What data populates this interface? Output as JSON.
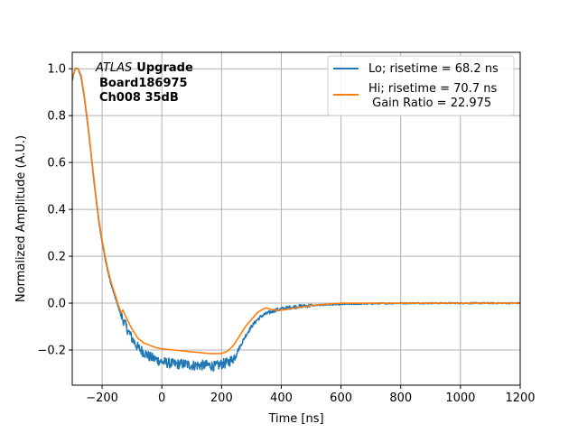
{
  "chart_data": {
    "type": "line",
    "xlabel": "Time [ns]",
    "ylabel": "Normalized Amplitude (A.U.)",
    "xlim": [
      -300,
      1200
    ],
    "ylim": [
      -0.35,
      1.07
    ],
    "xticks": [
      -200,
      0,
      200,
      400,
      600,
      800,
      1000,
      1200
    ],
    "xtick_labels": [
      "−200",
      "0",
      "200",
      "400",
      "600",
      "800",
      "1000",
      "1200"
    ],
    "yticks": [
      -0.2,
      0.0,
      0.2,
      0.4,
      0.6,
      0.8,
      1.0
    ],
    "ytick_labels": [
      "−0.2",
      "0.0",
      "0.2",
      "0.4",
      "0.6",
      "0.8",
      "1.0"
    ],
    "grid": true,
    "legend_position": "top-right",
    "annotation": {
      "italic": "ATLAS",
      "bold": "Upgrade",
      "line2": "Board186975",
      "line3": "Ch008 35dB"
    },
    "series": [
      {
        "name": "Lo; risetime = 68.2 ns",
        "color": "#1f77b4",
        "noisy": true,
        "x": [
          -300,
          -290,
          -280,
          -270,
          -260,
          -250,
          -240,
          -230,
          -220,
          -210,
          -200,
          -190,
          -180,
          -170,
          -160,
          -150,
          -140,
          -130,
          -120,
          -100,
          -80,
          -60,
          -40,
          -20,
          0,
          20,
          40,
          60,
          80,
          100,
          120,
          140,
          160,
          180,
          200,
          220,
          240,
          260,
          280,
          300,
          320,
          340,
          360,
          380,
          400,
          420,
          450,
          500,
          550,
          600,
          700,
          800,
          900,
          1000,
          1100,
          1200
        ],
        "y": [
          0.95,
          1.0,
          1.0,
          0.96,
          0.88,
          0.78,
          0.67,
          0.55,
          0.44,
          0.34,
          0.26,
          0.19,
          0.13,
          0.08,
          0.04,
          0.0,
          -0.04,
          -0.07,
          -0.1,
          -0.15,
          -0.19,
          -0.21,
          -0.23,
          -0.24,
          -0.25,
          -0.255,
          -0.26,
          -0.26,
          -0.26,
          -0.265,
          -0.265,
          -0.265,
          -0.265,
          -0.27,
          -0.26,
          -0.255,
          -0.235,
          -0.19,
          -0.14,
          -0.1,
          -0.07,
          -0.05,
          -0.04,
          -0.03,
          -0.025,
          -0.02,
          -0.015,
          -0.01,
          -0.007,
          -0.005,
          -0.002,
          0.0,
          0.0,
          0.0,
          0.0,
          0.0
        ]
      },
      {
        "name": "Hi; risetime = 70.7 ns\n Gain Ratio = 22.975",
        "color": "#ff7f0e",
        "noisy": false,
        "x": [
          -300,
          -290,
          -280,
          -270,
          -260,
          -250,
          -240,
          -230,
          -220,
          -210,
          -200,
          -190,
          -180,
          -170,
          -160,
          -150,
          -140,
          -135,
          -130,
          -120,
          -100,
          -80,
          -60,
          -40,
          -20,
          0,
          40,
          80,
          120,
          160,
          200,
          220,
          240,
          260,
          280,
          300,
          320,
          340,
          350,
          360,
          380,
          400,
          450,
          500,
          550,
          600,
          700,
          800,
          900,
          1000,
          1100,
          1200
        ],
        "y": [
          0.96,
          1.0,
          1.0,
          0.97,
          0.89,
          0.79,
          0.68,
          0.56,
          0.45,
          0.35,
          0.27,
          0.2,
          0.14,
          0.09,
          0.05,
          0.01,
          -0.03,
          -0.04,
          -0.03,
          -0.06,
          -0.11,
          -0.15,
          -0.17,
          -0.18,
          -0.19,
          -0.195,
          -0.2,
          -0.205,
          -0.21,
          -0.215,
          -0.215,
          -0.205,
          -0.18,
          -0.14,
          -0.1,
          -0.07,
          -0.04,
          -0.025,
          -0.02,
          -0.025,
          -0.03,
          -0.03,
          -0.02,
          -0.01,
          -0.005,
          0.0,
          0.0,
          0.0,
          0.0,
          0.0,
          0.0,
          0.0
        ]
      }
    ]
  }
}
